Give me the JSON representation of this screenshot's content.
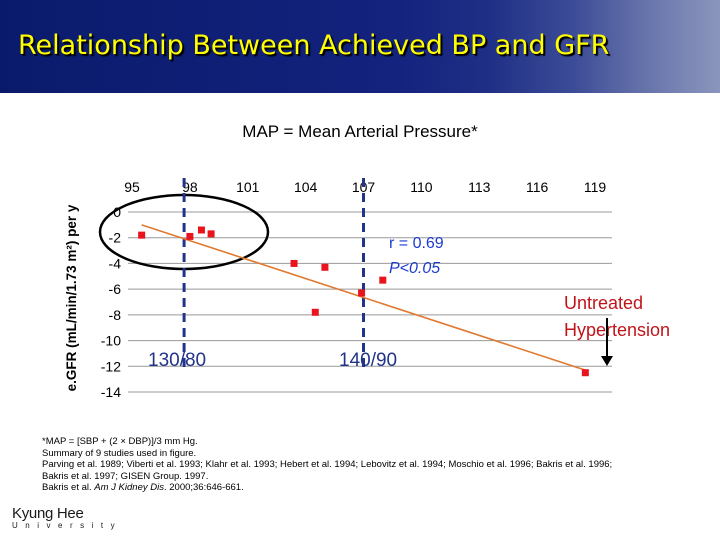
{
  "header": {
    "title": "Relationship Between Achieved BP and GFR"
  },
  "subtitle": "MAP = Mean Arterial Pressure*",
  "chart_data": {
    "type": "scatter",
    "title": "",
    "xlabel": "",
    "ylabel": "e.GFR (mL/min/1.73 m²) per y",
    "x_ticks": [
      95,
      98,
      101,
      104,
      107,
      110,
      113,
      116,
      119
    ],
    "y_ticks": [
      0,
      -2,
      -4,
      -6,
      -8,
      -10,
      -12,
      -14
    ],
    "xlim": [
      95,
      119
    ],
    "ylim": [
      -14,
      0
    ],
    "x_axis_position": "top",
    "grid": "horizontal",
    "series": [
      {
        "points": [
          {
            "x": 95.5,
            "y": -1.8
          },
          {
            "x": 98.0,
            "y": -1.9
          },
          {
            "x": 98.6,
            "y": -1.4
          },
          {
            "x": 99.1,
            "y": -1.7
          },
          {
            "x": 103.4,
            "y": -4.0
          },
          {
            "x": 104.5,
            "y": -7.8
          },
          {
            "x": 105.0,
            "y": -4.3
          },
          {
            "x": 106.9,
            "y": -6.3
          },
          {
            "x": 108.0,
            "y": -5.3
          },
          {
            "x": 118.5,
            "y": -12.5
          }
        ],
        "color": "#e8141e"
      }
    ],
    "trendline": {
      "x": [
        95.5,
        118.5
      ],
      "y": [
        -1.0,
        -12.3
      ],
      "color": "#e07a30"
    },
    "reference_lines": [
      {
        "x": 97.7,
        "label": "130/80",
        "color": "#22348a"
      },
      {
        "x": 107.0,
        "label": "140/90",
        "color": "#22348a"
      }
    ],
    "annotations": {
      "r": "r = 0.69",
      "p": "P<0.05",
      "untreated_line1": "Untreated",
      "untreated_line2": "Hypertension"
    },
    "annotation_colors": {
      "stats": "#1b3bd0",
      "untreated": "#c0141a",
      "reference_label": "#22348a"
    }
  },
  "footnotes": {
    "line1": "*MAP = [SBP + (2 × DBP)]/3 mm Hg.",
    "line2": "Summary of 9 studies used in figure.",
    "line3": "Parving et al. 1989; Viberti et al. 1993; Klahr et al. 1993; Hebert et al. 1994; Lebovitz et al. 1994; Moschio et al. 1996; Bakris et al. 1996;",
    "line4": "Bakris et al. 1997; GISEN Group. 1997.",
    "line5_prefix": "Bakris et al. ",
    "line5_journal": "Am J Kidney Dis",
    "line5_suffix": ". 2000;36:646-661."
  },
  "logo": {
    "name": "Kyung Hee",
    "sub": "University"
  }
}
